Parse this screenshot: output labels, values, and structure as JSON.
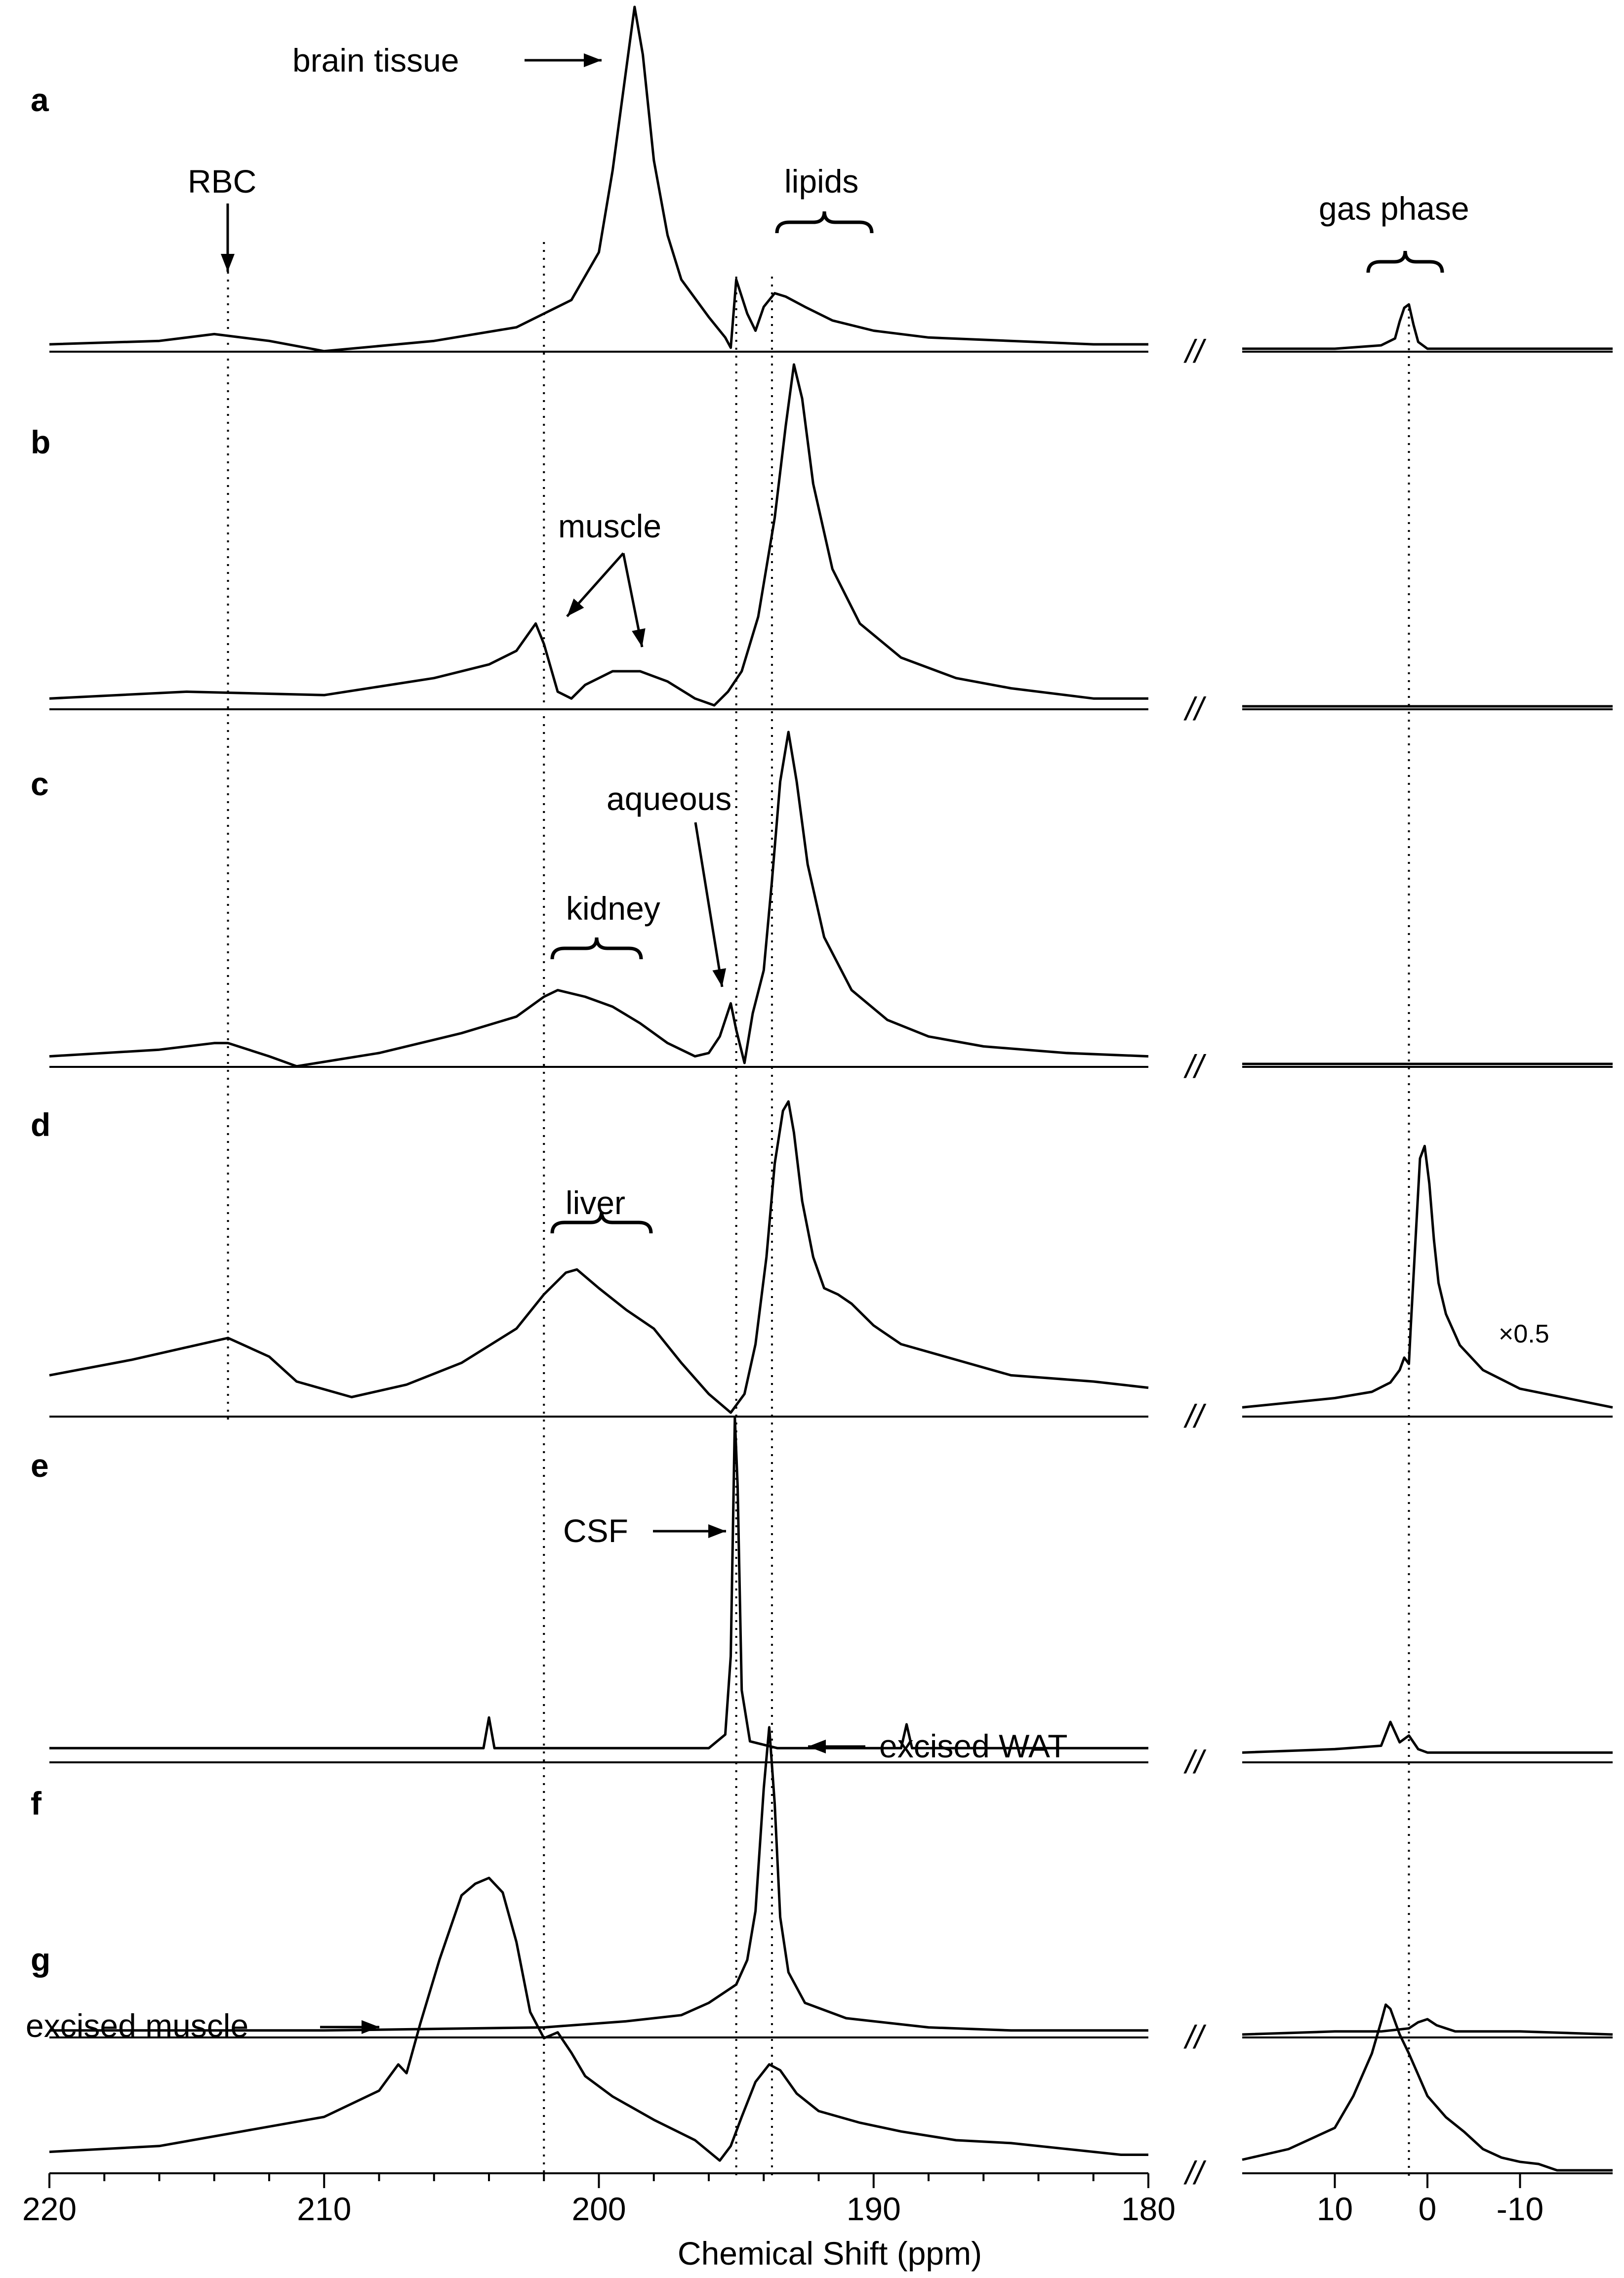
{
  "chart_data": {
    "type": "line",
    "title": "",
    "xlabel": "Chemical Shift (ppm)",
    "ylabel": "",
    "grid": false,
    "main_axis": {
      "xlim": [
        220,
        180
      ],
      "ticks": [
        220,
        210,
        200,
        190,
        180
      ],
      "tick_labels": [
        "220",
        "210",
        "200",
        "190",
        "180"
      ]
    },
    "gas_axis": {
      "xlim": [
        20,
        -20
      ],
      "ticks": [
        10,
        0,
        -10
      ],
      "tick_labels": [
        "10",
        "0",
        "-10"
      ]
    },
    "break_marker": "//",
    "reference_lines": [
      213.5,
      202.0,
      195.0,
      193.7,
      2.0
    ],
    "panels": [
      {
        "label": "a",
        "main_series": {
          "name": "a",
          "x": [
            220,
            216,
            214,
            212,
            210,
            206,
            203,
            201,
            200,
            199.5,
            199,
            198.7,
            198.4,
            198,
            197.5,
            197,
            196,
            195.4,
            195.2,
            195.0,
            194.6,
            194.3,
            194,
            193.6,
            193.2,
            192.5,
            191.5,
            190,
            188,
            185,
            182,
            180
          ],
          "y": [
            0.01,
            0.02,
            0.04,
            0.02,
            -0.01,
            0.02,
            0.06,
            0.14,
            0.28,
            0.52,
            0.82,
            1.0,
            0.86,
            0.55,
            0.33,
            0.2,
            0.09,
            0.03,
            0.0,
            0.2,
            0.1,
            0.05,
            0.12,
            0.16,
            0.15,
            0.12,
            0.08,
            0.05,
            0.03,
            0.02,
            0.01,
            0.01
          ]
        },
        "gas_series": {
          "x": [
            20,
            10,
            5,
            3.5,
            3,
            2.5,
            2,
            1.5,
            1,
            0,
            -10,
            -20
          ],
          "y": [
            0.0,
            0.0,
            0.01,
            0.03,
            0.08,
            0.12,
            0.13,
            0.07,
            0.02,
            0.0,
            0.0,
            0.0
          ]
        },
        "annotations": [
          {
            "text": "brain tissue",
            "arrow": true
          },
          {
            "text": "RBC",
            "arrow": true
          },
          {
            "text": "lipids",
            "brace": true
          },
          {
            "text": "gas phase",
            "brace": true
          }
        ]
      },
      {
        "label": "b",
        "main_series": {
          "name": "b",
          "x": [
            220,
            215,
            210,
            206,
            204,
            203,
            202.3,
            202,
            201.5,
            201,
            200.5,
            199.5,
            198.5,
            197.5,
            196.5,
            195.8,
            195.3,
            194.8,
            194.2,
            193.6,
            193.2,
            192.9,
            192.6,
            192.2,
            191.5,
            190.5,
            189,
            187,
            185,
            182,
            180
          ],
          "y": [
            0.02,
            0.04,
            0.03,
            0.08,
            0.12,
            0.16,
            0.24,
            0.18,
            0.04,
            0.02,
            0.06,
            0.1,
            0.1,
            0.07,
            0.02,
            0.0,
            0.04,
            0.1,
            0.26,
            0.55,
            0.82,
            1.0,
            0.9,
            0.65,
            0.4,
            0.24,
            0.14,
            0.08,
            0.05,
            0.02,
            0.02
          ]
        },
        "gas_series": {
          "x": [
            20,
            10,
            0,
            -10,
            -20
          ],
          "y": [
            0.0,
            0.0,
            0.0,
            0.0,
            0.0
          ]
        },
        "annotations": [
          {
            "text": "muscle",
            "arrow": true
          }
        ]
      },
      {
        "label": "c",
        "main_series": {
          "name": "c",
          "x": [
            220,
            216,
            214,
            213.5,
            212,
            211,
            208,
            205,
            203,
            202,
            201.5,
            200.5,
            199.5,
            198.5,
            197.5,
            196.5,
            196,
            195.6,
            195.2,
            195.0,
            194.7,
            194.4,
            194.0,
            193.7,
            193.4,
            193.1,
            192.8,
            192.4,
            191.8,
            190.8,
            189.5,
            188,
            186,
            183,
            180
          ],
          "y": [
            0.02,
            0.04,
            0.06,
            0.06,
            0.02,
            -0.01,
            0.03,
            0.09,
            0.14,
            0.2,
            0.22,
            0.2,
            0.17,
            0.12,
            0.06,
            0.02,
            0.03,
            0.08,
            0.18,
            0.1,
            0.0,
            0.15,
            0.28,
            0.55,
            0.85,
            1.0,
            0.85,
            0.6,
            0.38,
            0.22,
            0.13,
            0.08,
            0.05,
            0.03,
            0.02
          ]
        },
        "gas_series": {
          "x": [
            20,
            10,
            0,
            -10,
            -20
          ],
          "y": [
            0.0,
            0.0,
            0.0,
            0.0,
            0.0
          ]
        },
        "annotations": [
          {
            "text": "aqueous",
            "arrow": true
          },
          {
            "text": "kidney",
            "brace": true
          }
        ]
      },
      {
        "label": "d",
        "main_series": {
          "name": "d",
          "x": [
            220,
            217,
            215,
            213.5,
            212,
            211,
            209,
            207,
            205,
            203,
            202,
            201.2,
            200.8,
            200,
            199,
            198,
            197,
            196,
            195.2,
            194.7,
            194.3,
            193.9,
            193.6,
            193.3,
            193.1,
            192.9,
            192.6,
            192.2,
            191.8,
            191.3,
            190.8,
            190,
            189,
            187,
            185,
            182,
            180
          ],
          "y": [
            0.12,
            0.17,
            0.21,
            0.24,
            0.18,
            0.1,
            0.05,
            0.09,
            0.16,
            0.27,
            0.38,
            0.45,
            0.46,
            0.4,
            0.33,
            0.27,
            0.16,
            0.06,
            0.0,
            0.06,
            0.22,
            0.5,
            0.8,
            0.97,
            1.0,
            0.9,
            0.68,
            0.5,
            0.4,
            0.38,
            0.35,
            0.28,
            0.22,
            0.17,
            0.12,
            0.1,
            0.08
          ]
        },
        "gas_series": {
          "x": [
            20,
            10,
            6,
            4,
            3,
            2.5,
            2,
            1.8,
            1.3,
            0.8,
            0.3,
            -0.2,
            -0.7,
            -1.2,
            -2,
            -3.5,
            -6,
            -10,
            -20
          ],
          "y": [
            0.02,
            0.05,
            0.07,
            0.1,
            0.14,
            0.18,
            0.16,
            0.28,
            0.55,
            0.82,
            0.86,
            0.74,
            0.56,
            0.42,
            0.32,
            0.22,
            0.14,
            0.08,
            0.02
          ]
        },
        "annotations": [
          {
            "text": "liver",
            "brace": true
          },
          {
            "text": "×0.5",
            "arrow": false
          }
        ]
      },
      {
        "label": "e",
        "main_series": {
          "name": "e",
          "x": [
            220,
            210,
            204.2,
            204.0,
            203.8,
            200,
            196,
            195.4,
            195.2,
            195.05,
            194.95,
            194.8,
            194.5,
            193.5,
            189.0,
            188.8,
            188.6,
            185,
            180
          ],
          "y": [
            0.03,
            0.03,
            0.03,
            0.12,
            0.03,
            0.03,
            0.03,
            0.07,
            0.3,
            1.0,
            0.8,
            0.2,
            0.05,
            0.03,
            0.03,
            0.1,
            0.03,
            0.03,
            0.03
          ]
        },
        "gas_series": {
          "x": [
            20,
            10,
            5,
            4,
            3,
            2,
            1,
            0,
            -10,
            -20
          ],
          "y": [
            0.02,
            0.03,
            0.04,
            0.11,
            0.05,
            0.07,
            0.03,
            0.02,
            0.02,
            0.02
          ]
        },
        "annotations": [
          {
            "text": "CSF",
            "arrow": true
          }
        ]
      },
      {
        "label": "f",
        "main_series": {
          "name": "f",
          "x": [
            220,
            210,
            202,
            199,
            197,
            196,
            195,
            194.6,
            194.3,
            194.0,
            193.8,
            193.6,
            193.4,
            193.1,
            192.5,
            191,
            188,
            185,
            180
          ],
          "y": [
            0.01,
            0.01,
            0.02,
            0.04,
            0.06,
            0.1,
            0.16,
            0.24,
            0.4,
            0.8,
            1.0,
            0.75,
            0.38,
            0.2,
            0.1,
            0.05,
            0.02,
            0.01,
            0.01
          ]
        },
        "gas_series": {
          "x": [
            20,
            10,
            5,
            2,
            1,
            0,
            -1,
            -3,
            -10,
            -20
          ],
          "y": [
            0.0,
            0.01,
            0.01,
            0.02,
            0.04,
            0.05,
            0.03,
            0.01,
            0.01,
            0.0
          ]
        },
        "annotations": [
          {
            "text": "excised WAT",
            "arrow": true
          }
        ]
      },
      {
        "label": "g",
        "main_series": {
          "name": "g",
          "x": [
            220,
            216,
            213,
            210,
            208,
            207.3,
            207,
            206.5,
            205.8,
            205,
            204.5,
            204,
            203.5,
            203,
            202.5,
            202,
            201.5,
            201,
            200.5,
            199.5,
            198,
            196.5,
            195.6,
            195.2,
            194.8,
            194.3,
            193.8,
            193.4,
            192.8,
            192,
            190.5,
            189,
            187,
            185,
            183,
            181,
            180
          ],
          "y": [
            0.06,
            0.08,
            0.13,
            0.18,
            0.27,
            0.36,
            0.33,
            0.5,
            0.72,
            0.94,
            0.98,
            1.0,
            0.95,
            0.78,
            0.54,
            0.45,
            0.47,
            0.4,
            0.32,
            0.25,
            0.17,
            0.1,
            0.03,
            0.08,
            0.18,
            0.3,
            0.36,
            0.34,
            0.26,
            0.2,
            0.16,
            0.13,
            0.1,
            0.09,
            0.07,
            0.05,
            0.05
          ]
        },
        "gas_series": {
          "x": [
            20,
            15,
            10,
            8,
            6,
            5,
            4.5,
            4,
            3.5,
            3,
            2,
            1,
            0,
            -2,
            -4,
            -6,
            -8,
            -10,
            -12,
            -14,
            -20
          ],
          "y": [
            0.05,
            0.1,
            0.2,
            0.35,
            0.55,
            0.7,
            0.78,
            0.76,
            0.7,
            0.64,
            0.55,
            0.45,
            0.35,
            0.25,
            0.18,
            0.1,
            0.06,
            0.04,
            0.03,
            0.0,
            0.0
          ]
        },
        "annotations": [
          {
            "text": "excised muscle",
            "arrow": true
          }
        ]
      }
    ]
  }
}
